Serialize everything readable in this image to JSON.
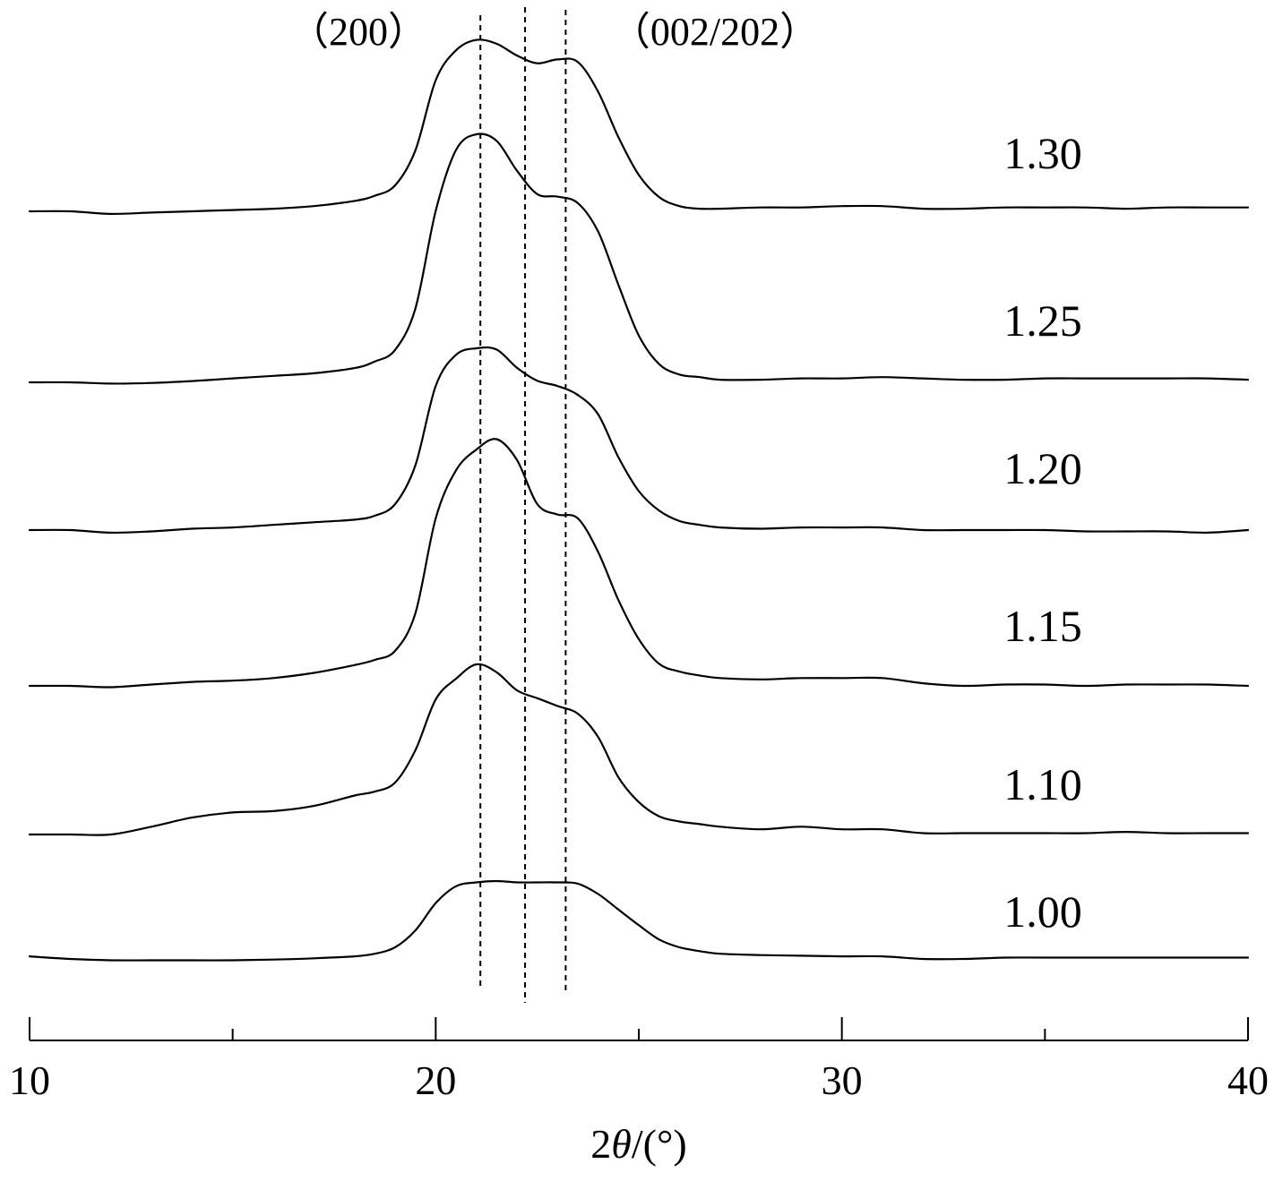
{
  "chart_data": {
    "type": "line",
    "xlabel": "2θ/(°)",
    "xlabel_parts": {
      "prefix": "2",
      "symbol": "θ",
      "suffix": "/(°)"
    },
    "xlim": [
      10,
      40
    ],
    "x_ticks_major": [
      10,
      20,
      30,
      40
    ],
    "x_tick_labels": [
      "10",
      "20",
      "30",
      "40"
    ],
    "x_ticks_minor": [
      15,
      25,
      35
    ],
    "ylabel": "",
    "grid": false,
    "legend": "none",
    "reference_lines": [
      {
        "x": 21.1,
        "label": "（200）"
      },
      {
        "x": 22.2,
        "label": ""
      },
      {
        "x": 23.2,
        "label": "（002/202）"
      }
    ],
    "x": [
      10,
      11,
      12,
      13,
      14,
      15,
      16,
      17,
      18,
      18.5,
      19,
      19.5,
      20,
      20.5,
      21,
      21.5,
      22,
      22.5,
      23,
      23.5,
      24,
      24.5,
      25,
      25.5,
      26,
      26.5,
      27,
      28,
      29,
      30,
      31,
      32,
      33,
      34,
      35,
      36,
      37,
      38,
      39,
      40
    ],
    "series": [
      {
        "name": "1.00",
        "values": [
          0.2,
          0.0,
          -0.1,
          -0.1,
          -0.1,
          -0.1,
          -0.05,
          0.05,
          0.2,
          0.4,
          0.9,
          2.2,
          4.3,
          5.6,
          5.9,
          6.0,
          5.9,
          5.9,
          5.9,
          5.8,
          5.0,
          3.8,
          2.6,
          1.5,
          0.9,
          0.6,
          0.4,
          0.3,
          0.25,
          0.2,
          0.2,
          0.0,
          0.0,
          0.1,
          0.1,
          0.1,
          0.1,
          0.1,
          0.1,
          0.1
        ]
      },
      {
        "name": "1.10",
        "values": [
          0.0,
          0.0,
          0.0,
          0.6,
          1.3,
          1.7,
          1.8,
          2.2,
          3.0,
          3.3,
          4.0,
          6.5,
          10.4,
          12.0,
          13.1,
          12.5,
          11.1,
          10.5,
          9.9,
          9.3,
          7.5,
          4.4,
          2.5,
          1.4,
          1.0,
          0.8,
          0.6,
          0.4,
          0.6,
          0.4,
          0.4,
          0.1,
          0.1,
          0.1,
          0.1,
          0.1,
          0.2,
          0.1,
          0.1,
          0.1
        ]
      },
      {
        "name": "1.15",
        "values": [
          0.0,
          0.0,
          -0.1,
          0.1,
          0.3,
          0.4,
          0.6,
          1.0,
          1.6,
          2.0,
          2.7,
          5.6,
          12.9,
          16.6,
          18.2,
          19.0,
          17.4,
          14.0,
          13.2,
          12.9,
          10.3,
          6.6,
          3.6,
          1.7,
          1.1,
          0.8,
          0.6,
          0.5,
          0.6,
          0.6,
          0.6,
          0.2,
          0.0,
          0.1,
          0.1,
          0.0,
          0.1,
          0.1,
          0.1,
          0.0
        ]
      },
      {
        "name": "1.20",
        "values": [
          0.0,
          0.0,
          -0.2,
          -0.1,
          0.1,
          0.2,
          0.4,
          0.6,
          0.8,
          1.1,
          2.0,
          5.0,
          11.1,
          13.5,
          14.0,
          13.9,
          12.5,
          11.5,
          11.1,
          10.4,
          8.9,
          5.6,
          3.0,
          1.5,
          0.7,
          0.4,
          0.2,
          0.1,
          0.2,
          0.2,
          0.2,
          0.0,
          0.0,
          0.0,
          0.0,
          -0.1,
          -0.1,
          -0.1,
          -0.2,
          0.0
        ]
      },
      {
        "name": "1.25",
        "values": [
          0.0,
          0.0,
          -0.1,
          -0.05,
          0.1,
          0.3,
          0.5,
          0.7,
          1.1,
          1.6,
          2.5,
          5.7,
          13.2,
          17.9,
          19.1,
          18.6,
          16.3,
          14.5,
          14.3,
          13.8,
          11.6,
          7.5,
          3.6,
          1.4,
          0.6,
          0.4,
          0.2,
          0.2,
          0.3,
          0.3,
          0.4,
          0.3,
          0.2,
          0.2,
          0.3,
          0.3,
          0.3,
          0.3,
          0.3,
          0.2
        ]
      },
      {
        "name": "1.30",
        "values": [
          0.0,
          0.0,
          -0.2,
          -0.1,
          0.0,
          0.1,
          0.2,
          0.4,
          0.8,
          1.2,
          2.0,
          4.7,
          10.1,
          12.4,
          13.2,
          12.9,
          12.0,
          11.4,
          11.7,
          11.5,
          9.2,
          5.7,
          2.8,
          1.1,
          0.4,
          0.2,
          0.2,
          0.3,
          0.3,
          0.4,
          0.4,
          0.2,
          0.2,
          0.3,
          0.3,
          0.3,
          0.2,
          0.3,
          0.3,
          0.3
        ]
      }
    ]
  }
}
